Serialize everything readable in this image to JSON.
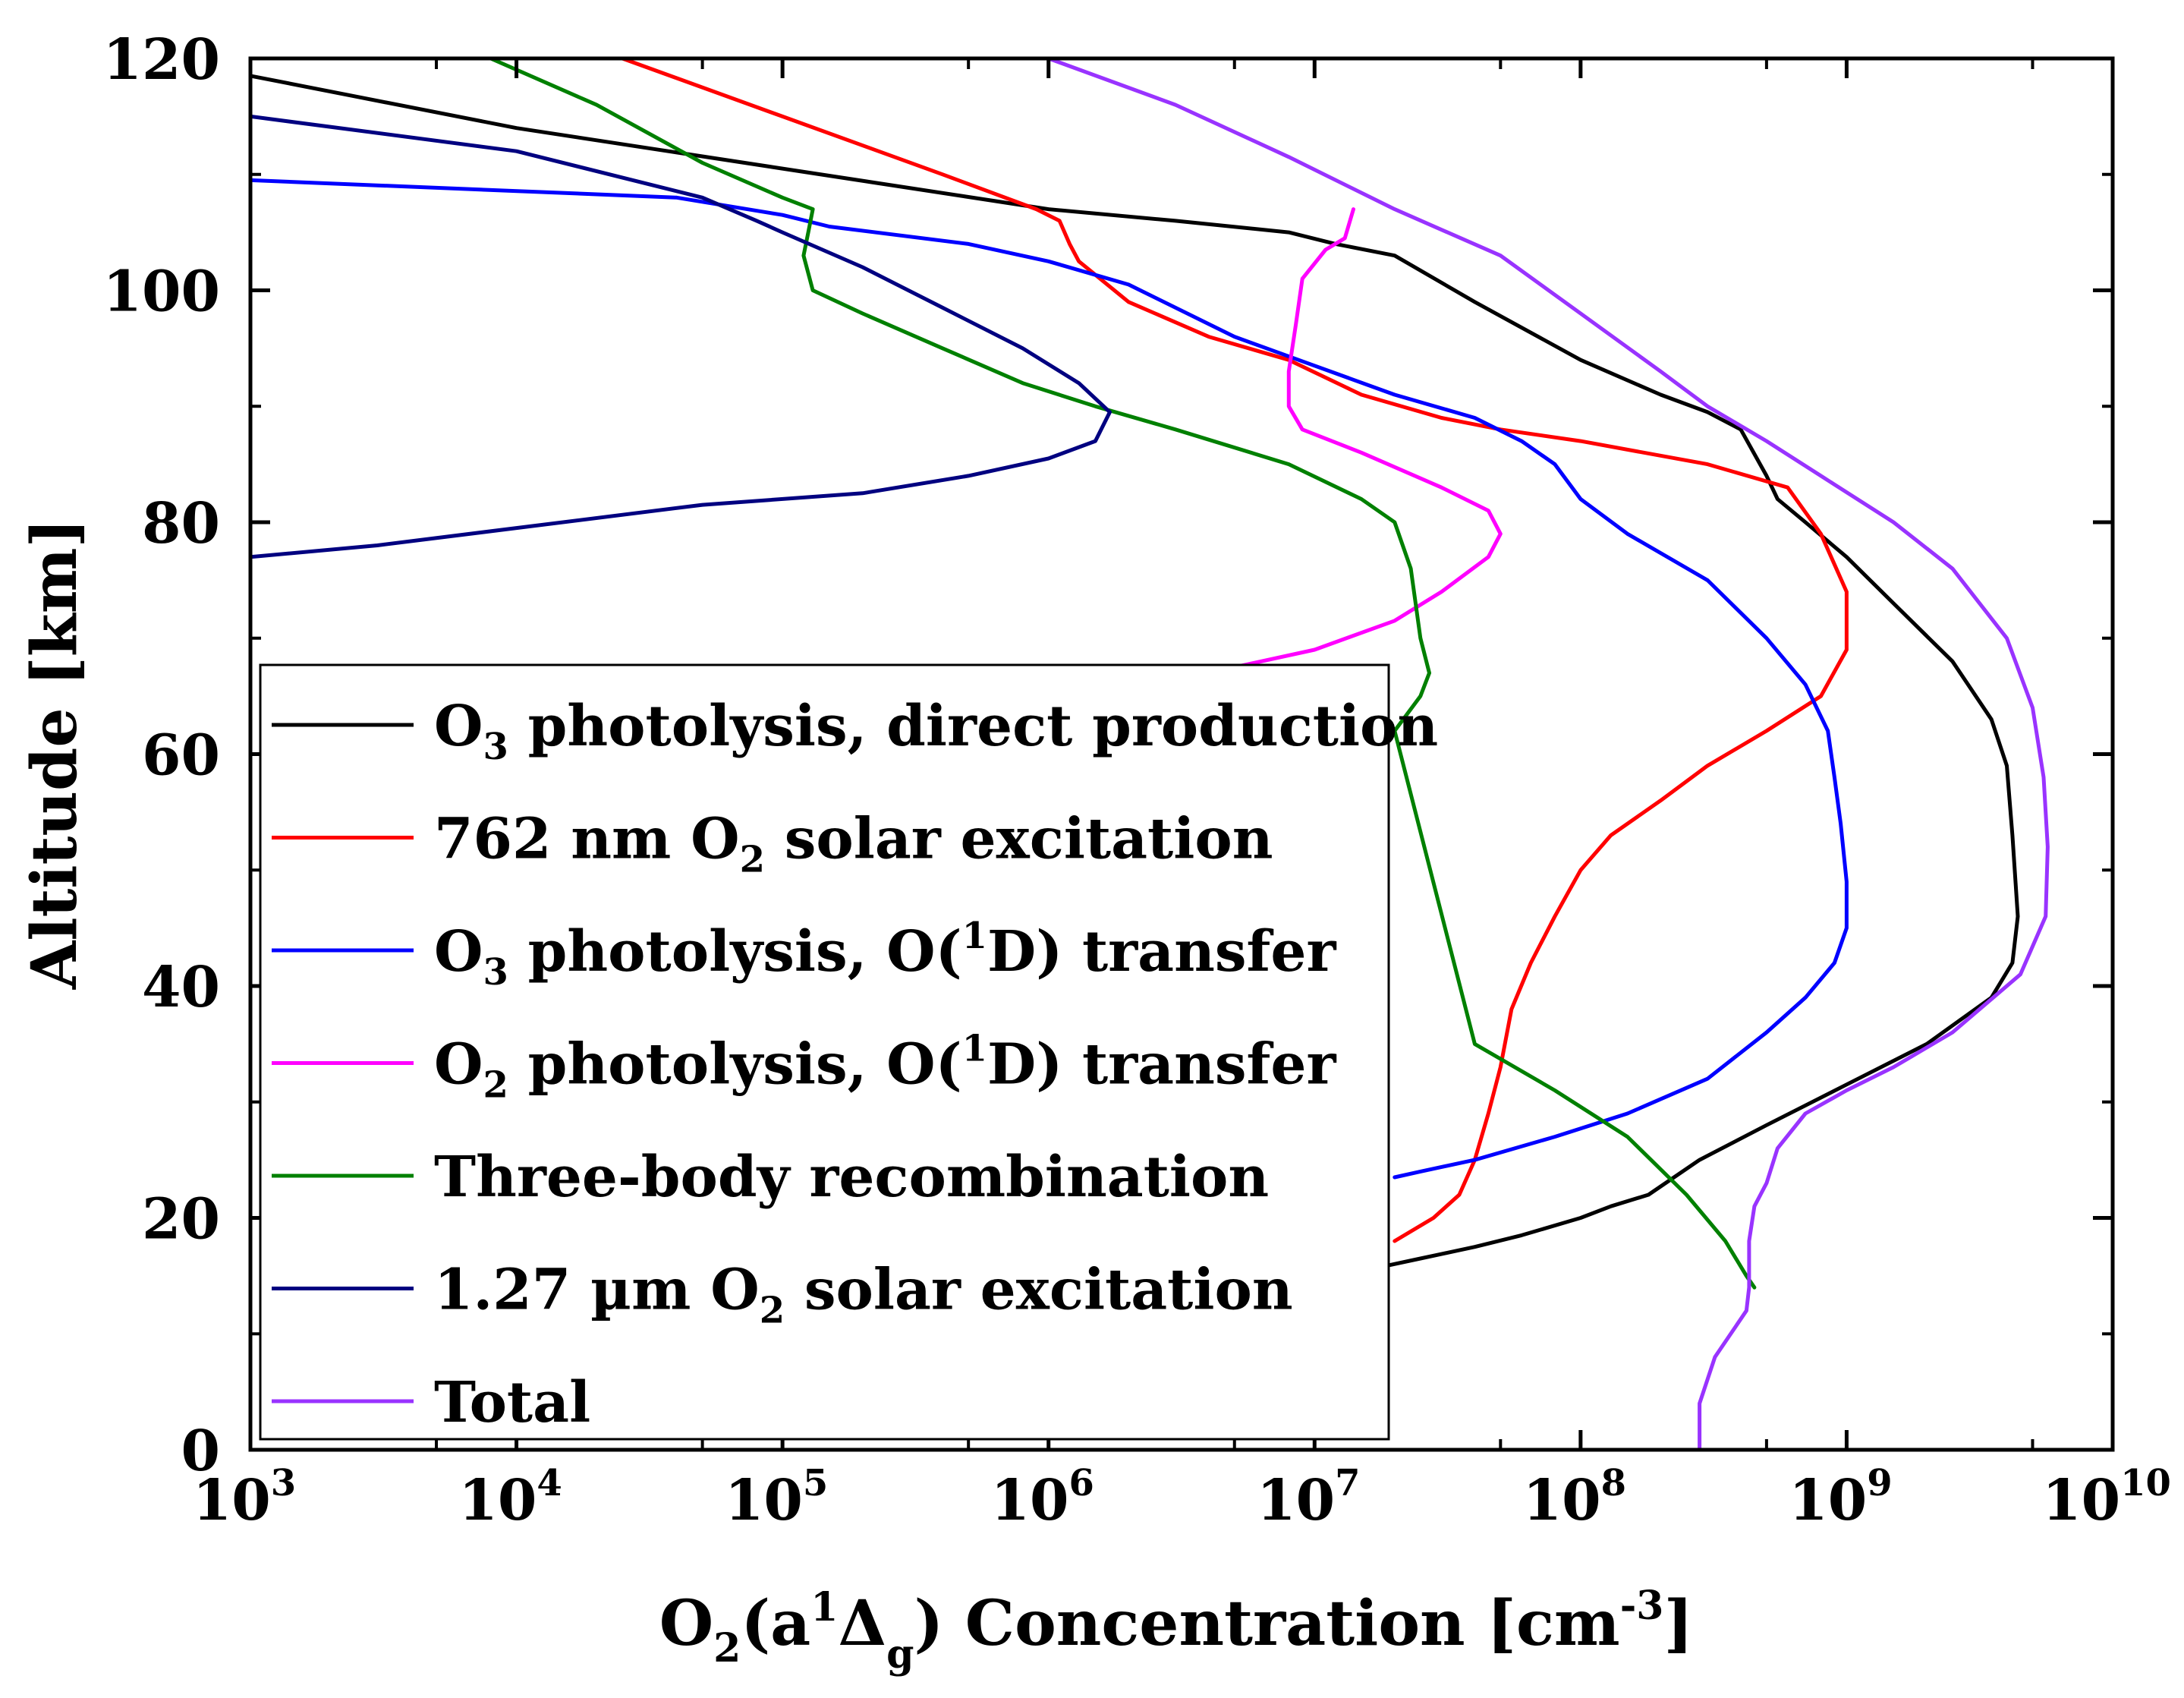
{
  "chart_data": {
    "type": "line",
    "x_scale": "log",
    "xlim": [
      1000,
      10000000000
    ],
    "ylim": [
      0,
      120
    ],
    "grid": false,
    "legend_position": "lower-left",
    "xlabel": {
      "a": "O",
      "b": "2",
      "c": "(a",
      "d": "1",
      "e": "Δ",
      "f": "g",
      "g": ") Concentration [cm",
      "h": "-3",
      "i": "]"
    },
    "ylabel": "Altitude [km]",
    "x_ticks": [
      {
        "value": 1000,
        "base": "10",
        "exp": "3"
      },
      {
        "value": 10000,
        "base": "10",
        "exp": "4"
      },
      {
        "value": 100000,
        "base": "10",
        "exp": "5"
      },
      {
        "value": 1000000,
        "base": "10",
        "exp": "6"
      },
      {
        "value": 10000000,
        "base": "10",
        "exp": "7"
      },
      {
        "value": 100000000,
        "base": "10",
        "exp": "8"
      },
      {
        "value": 1000000000,
        "base": "10",
        "exp": "9"
      },
      {
        "value": 10000000000,
        "base": "10",
        "exp": "10"
      }
    ],
    "y_ticks": [
      "0",
      "20",
      "40",
      "60",
      "80",
      "100",
      "120"
    ],
    "series": [
      {
        "id": "s_o3_direct",
        "color": "#000000",
        "legend": {
          "pre": "O",
          "sub": "3",
          "post": " photolysis, direct production"
        },
        "points": [
          [
            1000,
            118.5
          ],
          [
            10000,
            114
          ],
          [
            100000,
            110.5
          ],
          [
            1000000,
            107
          ],
          [
            3000000,
            106
          ],
          [
            8000000,
            105
          ],
          [
            12000000,
            104
          ],
          [
            20000000,
            103
          ],
          [
            40000000,
            99
          ],
          [
            100000000,
            94
          ],
          [
            200000000,
            91
          ],
          [
            300000000,
            89.5
          ],
          [
            400000000,
            88
          ],
          [
            500000000,
            84
          ],
          [
            550000000,
            82
          ],
          [
            700000000,
            80
          ],
          [
            1000000000,
            77
          ],
          [
            1500000000,
            73
          ],
          [
            2500000000,
            68
          ],
          [
            3500000000,
            63
          ],
          [
            4000000000,
            59
          ],
          [
            4200000000,
            53
          ],
          [
            4400000000,
            46
          ],
          [
            4200000000,
            42
          ],
          [
            3500000000,
            39
          ],
          [
            2000000000,
            35
          ],
          [
            1000000000,
            31.5
          ],
          [
            500000000,
            28
          ],
          [
            280000000,
            25
          ],
          [
            180000000,
            22
          ],
          [
            130000000,
            21
          ],
          [
            100000000,
            20
          ],
          [
            60000000,
            18.5
          ],
          [
            40000000,
            17.5
          ],
          [
            25000000,
            16.5
          ],
          [
            18000000,
            15.8
          ]
        ]
      },
      {
        "id": "s_762",
        "color": "#ff0000",
        "legend": {
          "pre": "762 nm O",
          "sub": "2",
          "post": " solar excitation"
        },
        "points": [
          [
            25000,
            120
          ],
          [
            100000,
            115
          ],
          [
            400000,
            110
          ],
          [
            900000,
            107
          ],
          [
            1100000,
            106
          ],
          [
            1200000,
            104
          ],
          [
            1300000,
            102.5
          ],
          [
            2000000,
            99
          ],
          [
            4000000,
            96
          ],
          [
            8000000,
            94
          ],
          [
            15000000,
            91
          ],
          [
            30000000,
            89
          ],
          [
            50000000,
            88
          ],
          [
            100000000,
            87
          ],
          [
            300000000,
            85
          ],
          [
            600000000,
            83
          ],
          [
            800000000,
            79
          ],
          [
            1000000000,
            74
          ],
          [
            1000000000,
            69
          ],
          [
            800000000,
            65
          ],
          [
            500000000,
            62
          ],
          [
            300000000,
            59
          ],
          [
            200000000,
            56
          ],
          [
            130000000,
            53
          ],
          [
            100000000,
            50
          ],
          [
            80000000,
            46
          ],
          [
            65000000,
            42
          ],
          [
            55000000,
            38
          ],
          [
            50000000,
            33
          ],
          [
            45000000,
            29
          ],
          [
            40000000,
            25
          ],
          [
            35000000,
            22
          ],
          [
            28000000,
            20
          ],
          [
            20000000,
            18
          ]
        ]
      },
      {
        "id": "s_o3_o1d",
        "color": "#0000ff",
        "legend": {
          "pre": "O",
          "sub": "3",
          "post": " photolysis, O(",
          "sup": "1",
          "post2": "D) transfer"
        },
        "points": [
          [
            1000,
            109.5
          ],
          [
            40000,
            108
          ],
          [
            100000,
            106.5
          ],
          [
            150000,
            105.5
          ],
          [
            500000,
            104
          ],
          [
            1000000,
            102.5
          ],
          [
            2000000,
            100.5
          ],
          [
            5000000,
            96
          ],
          [
            10000000,
            93.5
          ],
          [
            20000000,
            91
          ],
          [
            40000000,
            89
          ],
          [
            60000000,
            87
          ],
          [
            80000000,
            85
          ],
          [
            100000000,
            82
          ],
          [
            150000000,
            79
          ],
          [
            300000000,
            75
          ],
          [
            500000000,
            70
          ],
          [
            700000000,
            66
          ],
          [
            850000000,
            62
          ],
          [
            900000000,
            58
          ],
          [
            950000000,
            54
          ],
          [
            1000000000,
            49
          ],
          [
            1000000000,
            45
          ],
          [
            900000000,
            42
          ],
          [
            700000000,
            39
          ],
          [
            500000000,
            36
          ],
          [
            300000000,
            32
          ],
          [
            150000000,
            29
          ],
          [
            80000000,
            27
          ],
          [
            40000000,
            25
          ],
          [
            25000000,
            24
          ],
          [
            20000000,
            23.5
          ]
        ]
      },
      {
        "id": "s_o2_o1d",
        "color": "#ff00ff",
        "legend": {
          "pre": "O",
          "sub": "2",
          "post": " photolysis, O(",
          "sup": "1",
          "post2": "D) transfer"
        },
        "points": [
          [
            14000000,
            107
          ],
          [
            13000000,
            104.5
          ],
          [
            11000000,
            103.5
          ],
          [
            9000000,
            101
          ],
          [
            8500000,
            97
          ],
          [
            8000000,
            93
          ],
          [
            8000000,
            90
          ],
          [
            9000000,
            88
          ],
          [
            15000000,
            86
          ],
          [
            30000000,
            83
          ],
          [
            45000000,
            81
          ],
          [
            50000000,
            79
          ],
          [
            45000000,
            77
          ],
          [
            30000000,
            74
          ],
          [
            20000000,
            71.5
          ],
          [
            10000000,
            69
          ],
          [
            5000000,
            67.5
          ],
          [
            3000000,
            66.5
          ]
        ]
      },
      {
        "id": "s_threebody",
        "color": "#008000",
        "legend": {
          "pre": "Three-body recombination"
        },
        "points": [
          [
            8000,
            120
          ],
          [
            20000,
            116
          ],
          [
            50000,
            111
          ],
          [
            100000,
            108
          ],
          [
            130000,
            107
          ],
          [
            125000,
            105
          ],
          [
            120000,
            103
          ],
          [
            130000,
            100
          ],
          [
            200000,
            98
          ],
          [
            400000,
            95
          ],
          [
            800000,
            92
          ],
          [
            1500000,
            90
          ],
          [
            3000000,
            88
          ],
          [
            8000000,
            85
          ],
          [
            15000000,
            82
          ],
          [
            20000000,
            80
          ],
          [
            23000000,
            76
          ],
          [
            25000000,
            70
          ],
          [
            27000000,
            67
          ],
          [
            25000000,
            65
          ],
          [
            20000000,
            62
          ],
          [
            40000000,
            35
          ],
          [
            80000000,
            31
          ],
          [
            150000000,
            27
          ],
          [
            250000000,
            22
          ],
          [
            350000000,
            18
          ],
          [
            420000000,
            15
          ],
          [
            450000000,
            14
          ]
        ]
      },
      {
        "id": "s_127",
        "color": "#000080",
        "legend": {
          "pre": "1.27 µm O",
          "sub": "2",
          "post": " solar excitation"
        },
        "points": [
          [
            1000,
            115
          ],
          [
            10000,
            112
          ],
          [
            50000,
            108
          ],
          [
            80000,
            106
          ],
          [
            100000,
            105
          ],
          [
            200000,
            102
          ],
          [
            400000,
            98.5
          ],
          [
            800000,
            95
          ],
          [
            1300000,
            92
          ],
          [
            1700000,
            89.5
          ],
          [
            1500000,
            87
          ],
          [
            1000000,
            85.5
          ],
          [
            500000,
            84
          ],
          [
            200000,
            82.5
          ],
          [
            50000,
            81.5
          ],
          [
            10000,
            79.5
          ],
          [
            3000,
            78
          ],
          [
            1000,
            77
          ]
        ]
      },
      {
        "id": "s_total",
        "color": "#9933ff",
        "legend": {
          "pre": "Total"
        },
        "points": [
          [
            1000000,
            120
          ],
          [
            3000000,
            116
          ],
          [
            8000000,
            111.5
          ],
          [
            20000000,
            107
          ],
          [
            50000000,
            103
          ],
          [
            100000000,
            98
          ],
          [
            200000000,
            93
          ],
          [
            300000000,
            90
          ],
          [
            500000000,
            87
          ],
          [
            800000000,
            84
          ],
          [
            1500000000,
            80
          ],
          [
            2500000000,
            76
          ],
          [
            4000000000,
            70
          ],
          [
            5000000000,
            64
          ],
          [
            5500000000,
            58
          ],
          [
            5700000000,
            52
          ],
          [
            5600000000,
            46
          ],
          [
            4500000000,
            41
          ],
          [
            2500000000,
            36
          ],
          [
            1500000000,
            33
          ],
          [
            1000000000,
            31
          ],
          [
            700000000,
            29
          ],
          [
            550000000,
            26
          ],
          [
            500000000,
            23
          ],
          [
            450000000,
            21
          ],
          [
            430000000,
            18
          ],
          [
            430000000,
            14
          ],
          [
            420000000,
            12
          ],
          [
            320000000,
            8
          ],
          [
            280000000,
            4
          ],
          [
            280000000,
            0
          ]
        ]
      }
    ]
  }
}
